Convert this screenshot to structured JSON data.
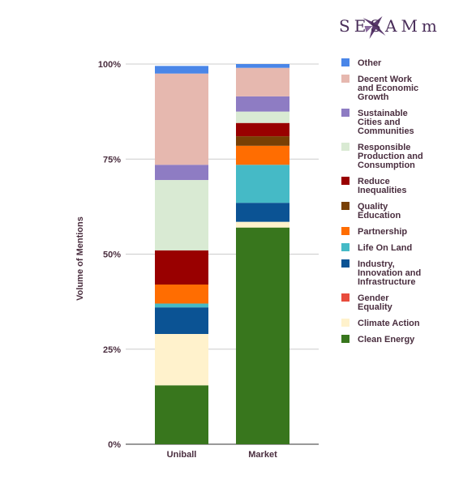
{
  "brand": {
    "name": "SESAMm",
    "color": "#4a2e5a"
  },
  "chart_data": {
    "type": "bar",
    "stacked": true,
    "percent": true,
    "ylabel": "Volume of Mentions",
    "ylim": [
      0,
      100
    ],
    "yticks": [
      "0%",
      "25%",
      "50%",
      "75%",
      "100%"
    ],
    "categories": [
      "Uniball",
      "Market"
    ],
    "grid": true,
    "legend_position": "right",
    "series": [
      {
        "name": "Clean Energy",
        "color": "#38761d",
        "values": [
          15.5,
          57
        ]
      },
      {
        "name": "Climate Action",
        "color": "#fff2cc",
        "values": [
          13.5,
          1.5
        ]
      },
      {
        "name": "Gender Equality",
        "color": "#e84c3d",
        "values": [
          0,
          0
        ]
      },
      {
        "name": "Industry, Innovation and Infrastructure",
        "color": "#0b5394",
        "values": [
          7,
          5
        ]
      },
      {
        "name": "Life On Land",
        "color": "#45bac6",
        "values": [
          1,
          10
        ]
      },
      {
        "name": "Partnership",
        "color": "#ff6d01",
        "values": [
          5,
          5
        ]
      },
      {
        "name": "Quality Education",
        "color": "#783f04",
        "values": [
          0,
          2.5
        ]
      },
      {
        "name": "Reduce Inequalities",
        "color": "#990000",
        "values": [
          9,
          3.5
        ]
      },
      {
        "name": "Responsible Production and Consumption",
        "color": "#d9ead3",
        "values": [
          18.5,
          3
        ]
      },
      {
        "name": "Sustainable Cities and Communities",
        "color": "#8e7cc3",
        "values": [
          4,
          4
        ]
      },
      {
        "name": "Decent Work and Economic Growth",
        "color": "#e6b8af",
        "values": [
          24,
          7.5
        ]
      },
      {
        "name": "Other",
        "color": "#4a86e8",
        "values": [
          2,
          1
        ]
      }
    ],
    "legend_order": [
      "Other",
      "Decent Work and Economic Growth",
      "Sustainable Cities and Communities",
      "Responsible Production and Consumption",
      "Reduce Inequalities",
      "Quality Education",
      "Partnership",
      "Life On Land",
      "Industry, Innovation and Infrastructure",
      "Gender Equality",
      "Climate Action",
      "Clean Energy"
    ],
    "legend_lines": {
      "Other": [
        "Other"
      ],
      "Decent Work and Economic Growth": [
        "Decent Work",
        "and Economic",
        "Growth"
      ],
      "Sustainable Cities and Communities": [
        "Sustainable",
        "Cities and",
        "Communities"
      ],
      "Responsible Production and Consumption": [
        "Responsible",
        "Production and",
        "Consumption"
      ],
      "Reduce Inequalities": [
        "Reduce",
        "Inequalities"
      ],
      "Quality Education": [
        "Quality",
        "Education"
      ],
      "Partnership": [
        "Partnership"
      ],
      "Life On Land": [
        "Life On Land"
      ],
      "Industry, Innovation and Infrastructure": [
        "Industry,",
        "Innovation and",
        "Infrastructure"
      ],
      "Gender Equality": [
        "Gender",
        "Equality"
      ],
      "Climate Action": [
        "Climate Action"
      ],
      "Clean Energy": [
        "Clean Energy"
      ]
    }
  }
}
